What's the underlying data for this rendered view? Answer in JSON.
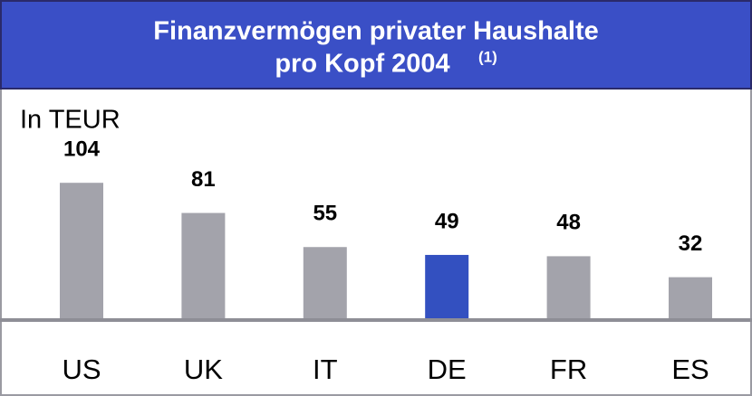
{
  "chart_data": {
    "type": "bar",
    "title_lines": [
      "Finanzvermögen privater Haushalte",
      "pro Kopf 2004"
    ],
    "title_note": "(1)",
    "unit_label": "In TEUR",
    "categories": [
      "US",
      "UK",
      "IT",
      "DE",
      "FR",
      "ES"
    ],
    "values": [
      104,
      81,
      55,
      49,
      48,
      32
    ],
    "colors": [
      "#a3a3ab",
      "#a3a3ab",
      "#a3a3ab",
      "#3350c0",
      "#a3a3ab",
      "#a3a3ab"
    ]
  }
}
